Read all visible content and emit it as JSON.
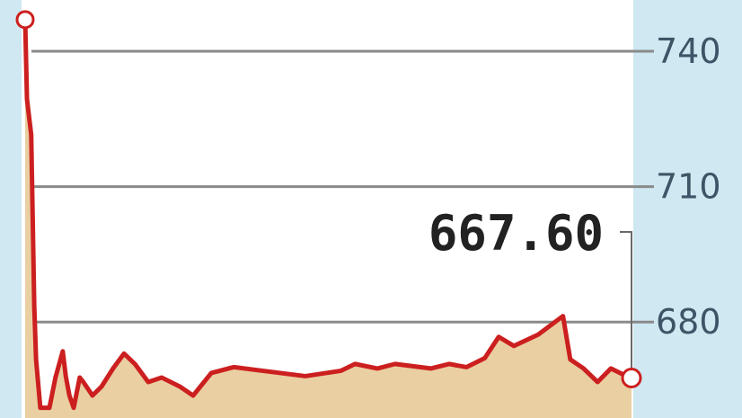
{
  "chart_data": {
    "type": "area",
    "title": "",
    "xlabel": "",
    "ylabel": "",
    "ylim": [
      658,
      751
    ],
    "y_ticks": [
      "740",
      "710",
      "680"
    ],
    "y_tick_values": [
      740,
      710,
      680
    ],
    "grid": true,
    "last_value_label": "667.60",
    "colors": {
      "line": "#cc1f1f",
      "fill": "#e9cfa2",
      "side_panel": "#cfe8f2",
      "grid": "#8a8a8a",
      "label": "#222222",
      "tick": "#3d5566"
    },
    "series": [
      {
        "x": [
          0,
          0.3,
          1.0,
          1.5,
          1.8,
          2.5,
          4.0,
          5.0,
          6.2,
          6.7,
          7.3,
          8.0,
          9.0,
          9.6,
          11.1,
          12.6,
          14.5,
          16.3,
          18.1,
          20.3,
          22.5,
          25.5,
          27.7,
          30.7,
          34.4,
          40.3,
          46.2,
          52.1,
          54.4,
          58.1,
          61.0,
          66.9,
          69.9,
          72.8,
          75.8,
          78.1,
          80.6,
          84.6,
          88.7,
          89.9,
          92.1,
          94.4,
          96.6,
          98.1,
          100
        ],
        "values": [
          747,
          729.4,
          721.5,
          683.6,
          671.7,
          661,
          661,
          667.7,
          673.5,
          668,
          663.7,
          661,
          667.7,
          666.7,
          663.7,
          665.7,
          669.7,
          673,
          670.7,
          666.7,
          667.7,
          665.7,
          663.7,
          668.7,
          670,
          669,
          668,
          669.2,
          670.7,
          669.7,
          670.7,
          669.7,
          670.7,
          670,
          672,
          676.7,
          674.7,
          677.2,
          681.3,
          671.7,
          669.7,
          666.7,
          669.7,
          668.7,
          667.6
        ]
      }
    ]
  }
}
